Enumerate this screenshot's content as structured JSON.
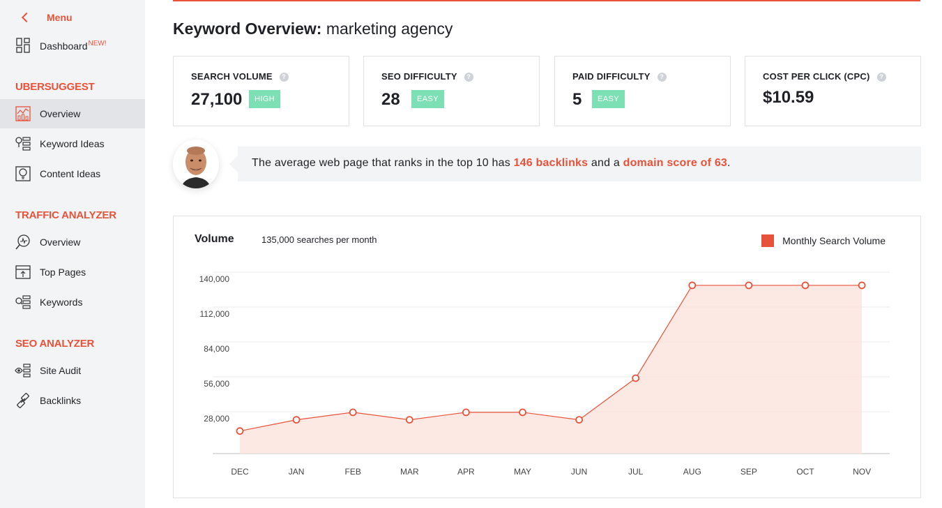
{
  "sidebar": {
    "menu_label": "Menu",
    "dashboard": {
      "label": "Dashboard",
      "badge": "NEW!"
    },
    "sections": [
      {
        "title": "UBERSUGGEST",
        "items": [
          "Overview",
          "Keyword Ideas",
          "Content Ideas"
        ]
      },
      {
        "title": "TRAFFIC ANALYZER",
        "items": [
          "Overview",
          "Top Pages",
          "Keywords"
        ]
      },
      {
        "title": "SEO ANALYZER",
        "items": [
          "Site Audit",
          "Backlinks"
        ]
      }
    ],
    "active_item": "Overview"
  },
  "header": {
    "title_bold": "Keyword Overview:",
    "keyword": "marketing agency"
  },
  "cards": [
    {
      "label": "SEARCH VOLUME",
      "value": "27,100",
      "tag": "HIGH"
    },
    {
      "label": "SEO DIFFICULTY",
      "value": "28",
      "tag": "EASY"
    },
    {
      "label": "PAID DIFFICULTY",
      "value": "5",
      "tag": "EASY"
    },
    {
      "label": "COST PER CLICK (CPC)",
      "value": "$10.59",
      "tag": ""
    }
  ],
  "insight": {
    "prefix": "The average web page that ranks in the top 10 has ",
    "backlinks": "146 backlinks",
    "middle": " and a ",
    "domain": "domain score of 63",
    "suffix": "."
  },
  "colors": {
    "accent": "#e8523a",
    "tag_green": "#7ce0b4",
    "area_fill": "#fbe3dd"
  },
  "chart_header": {
    "title": "Volume",
    "subtitle": "135,000 searches per month",
    "legend": "Monthly Search Volume"
  },
  "chart_data": {
    "type": "area",
    "categories": [
      "DEC",
      "JAN",
      "FEB",
      "MAR",
      "APR",
      "MAY",
      "JUN",
      "JUL",
      "AUG",
      "SEP",
      "OCT",
      "NOV"
    ],
    "series": [
      {
        "name": "Monthly Search Volume",
        "values": [
          18100,
          27100,
          33100,
          27100,
          33100,
          33100,
          27100,
          60500,
          135000,
          135000,
          135000,
          135000
        ]
      }
    ],
    "y_ticks": [
      28000,
      56000,
      84000,
      112000,
      140000
    ],
    "y_tick_labels": [
      "28,000",
      "56,000",
      "84,000",
      "112,000",
      "140,000"
    ],
    "ylim": [
      0,
      140000
    ],
    "grid": true,
    "legend_position": "top-right"
  }
}
